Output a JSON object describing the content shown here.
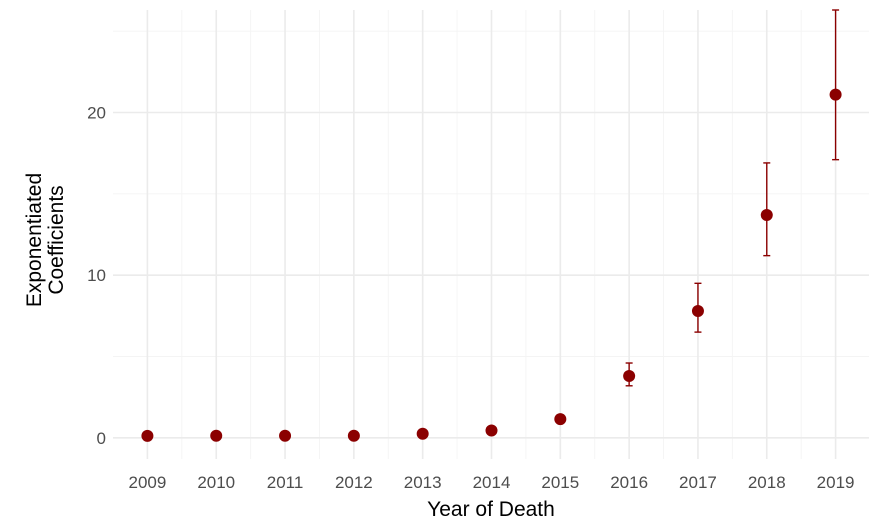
{
  "chart_data": {
    "type": "scatter",
    "title": "",
    "xlabel": "Year of Death",
    "ylabel_lines": [
      "Exponentiated",
      "Coefficients"
    ],
    "categories": [
      "2009",
      "2010",
      "2011",
      "2012",
      "2013",
      "2014",
      "2015",
      "2016",
      "2017",
      "2018",
      "2019"
    ],
    "points": [
      {
        "x": "2009",
        "y": 0.12,
        "lower": null,
        "upper": null
      },
      {
        "x": "2010",
        "y": 0.13,
        "lower": null,
        "upper": null
      },
      {
        "x": "2011",
        "y": 0.13,
        "lower": null,
        "upper": null
      },
      {
        "x": "2012",
        "y": 0.13,
        "lower": null,
        "upper": null
      },
      {
        "x": "2013",
        "y": 0.25,
        "lower": null,
        "upper": null
      },
      {
        "x": "2014",
        "y": 0.45,
        "lower": null,
        "upper": null
      },
      {
        "x": "2015",
        "y": 1.15,
        "lower": null,
        "upper": null
      },
      {
        "x": "2016",
        "y": 3.8,
        "lower": 3.2,
        "upper": 4.6
      },
      {
        "x": "2017",
        "y": 7.8,
        "lower": 6.5,
        "upper": 9.5
      },
      {
        "x": "2018",
        "y": 13.7,
        "lower": 11.2,
        "upper": 16.9
      },
      {
        "x": "2019",
        "y": 21.1,
        "lower": 17.1,
        "upper": 26.3
      }
    ],
    "ylim": [
      -1.3,
      26.3
    ],
    "yticks": [
      0,
      10,
      20
    ],
    "yticks_minor": [
      5,
      15,
      25
    ],
    "grid": true,
    "legend": "none",
    "point_color": "#8b0000",
    "error_color": "#8b0000"
  }
}
